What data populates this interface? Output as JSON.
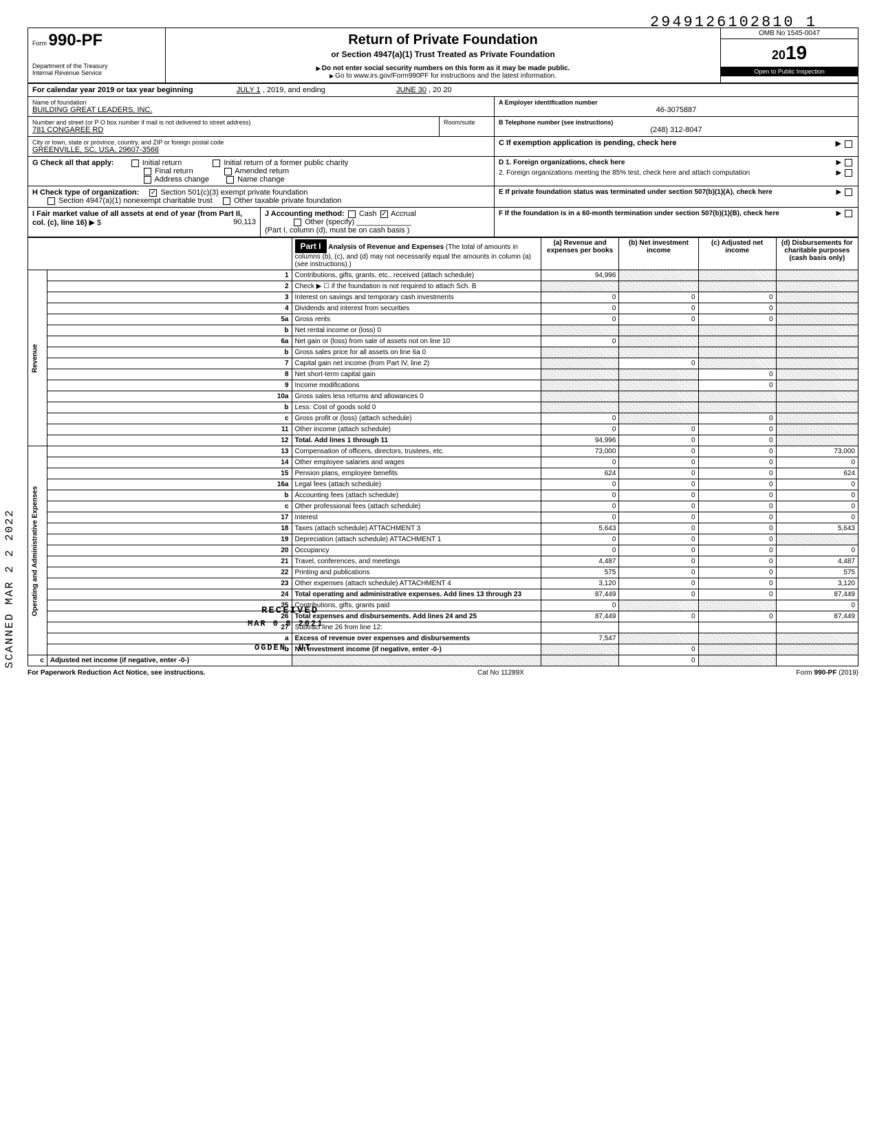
{
  "doc_id": "2949126102810  1",
  "form": {
    "prefix": "Form",
    "number": "990-PF",
    "dept1": "Department of the Treasury",
    "dept2": "Internal Revenue Service"
  },
  "title": {
    "main": "Return of Private Foundation",
    "sub": "or Section 4947(a)(1) Trust Treated as Private Foundation",
    "warn": "Do not enter social security numbers on this form as it may be made public.",
    "goto": "Go to www.irs.gov/Form990PF for instructions and the latest information."
  },
  "omb": {
    "no": "OMB No 1545-0047",
    "year_prefix": "20",
    "year_suffix": "19",
    "inspect": "Open to Public Inspection"
  },
  "period": {
    "label": "For calendar year 2019 or tax year beginning",
    "begin": "JULY 1",
    "mid": ", 2019, and ending",
    "end": "JUNE 30",
    "endyear": ", 20   20"
  },
  "id": {
    "name_label": "Name of foundation",
    "name": "BUILDING GREAT LEADERS, INC.",
    "addr_label": "Number and street (or P O  box number if mail is not delivered to street address)",
    "addr": "781 CONGAREE RD",
    "room_label": "Room/suite",
    "city_label": "City or town, state or province, country, and ZIP or foreign postal code",
    "city": "GREENVILLE, SC, USA, 29607-3566",
    "ein_label": "A  Employer identification number",
    "ein": "46-3075887",
    "phone_label": "B  Telephone number (see instructions)",
    "phone": "(248) 312-8047",
    "c_label": "C  If exemption application is pending, check here"
  },
  "g": {
    "label": "G   Check all that apply:",
    "opts": [
      "Initial return",
      "Initial return of a former public charity",
      "Final return",
      "Amended return",
      "Address change",
      "Name change"
    ]
  },
  "d": {
    "d1": "D  1. Foreign organizations, check here",
    "d2": "2. Foreign organizations meeting the 85% test, check here and attach computation"
  },
  "h": {
    "label": "H   Check type of organization:",
    "opt1": "Section 501(c)(3) exempt private foundation",
    "opt2": "Section 4947(a)(1) nonexempt charitable trust",
    "opt3": "Other taxable private foundation"
  },
  "e": {
    "label": "E  If private foundation status was terminated under section 507(b)(1)(A), check here"
  },
  "i": {
    "label": "I    Fair market value of all assets at end of year  (from Part II, col. (c), line 16)",
    "amount": "90,113",
    "j_label": "J   Accounting method:",
    "cash": "Cash",
    "accrual": "Accrual",
    "other": "Other (specify)",
    "note": "(Part I, column (d), must be on cash basis )"
  },
  "f": {
    "label": "F  If the foundation is in a 60-month termination under section 507(b)(1)(B), check here"
  },
  "part1": {
    "header": "Part I",
    "title": "Analysis of Revenue and Expenses",
    "note": "(The total of amounts in columns (b), (c), and (d) may not necessarily equal the amounts in column (a) (see instructions).)",
    "cols": {
      "a": "(a) Revenue and expenses per books",
      "b": "(b) Net investment income",
      "c": "(c) Adjusted net income",
      "d": "(d) Disbursements for charitable purposes (cash basis only)"
    }
  },
  "vert_revenue": "Revenue",
  "vert_expenses": "Operating and Administrative Expenses",
  "scanned": "SCANNED  MAR 2 2 2022",
  "received": "RECEIVED",
  "received2": "MAR 0 8 2021",
  "received3": "OGDEN, UT",
  "lines": [
    {
      "no": "1",
      "desc": "Contributions, gifts, grants, etc., received (attach schedule)",
      "a": "94,996",
      "b": "",
      "c": "",
      "d": "",
      "bs": true,
      "cs": true,
      "ds": true
    },
    {
      "no": "2",
      "desc": "Check ▶ ☐ if the foundation is not required to attach Sch. B",
      "a": "",
      "b": "",
      "c": "",
      "d": "",
      "as": true,
      "bs": true,
      "cs": true,
      "ds": true
    },
    {
      "no": "3",
      "desc": "Interest on savings and temporary cash investments",
      "a": "0",
      "b": "0",
      "c": "0",
      "d": "",
      "ds": true
    },
    {
      "no": "4",
      "desc": "Dividends and interest from securities",
      "a": "0",
      "b": "0",
      "c": "0",
      "d": "",
      "ds": true
    },
    {
      "no": "5a",
      "desc": "Gross rents",
      "a": "0",
      "b": "0",
      "c": "0",
      "d": "",
      "ds": true
    },
    {
      "no": "b",
      "desc": "Net rental income or (loss)                                          0",
      "a": "",
      "b": "",
      "c": "",
      "d": "",
      "as": true,
      "bs": true,
      "cs": true,
      "ds": true
    },
    {
      "no": "6a",
      "desc": "Net gain or (loss) from sale of assets not on line 10",
      "a": "0",
      "b": "",
      "c": "",
      "d": "",
      "bs": true,
      "cs": true,
      "ds": true
    },
    {
      "no": "b",
      "desc": "Gross sales price for all assets on line 6a                    0",
      "a": "",
      "b": "",
      "c": "",
      "d": "",
      "as": true,
      "bs": true,
      "cs": true,
      "ds": true
    },
    {
      "no": "7",
      "desc": "Capital gain net income (from Part IV, line 2)",
      "a": "",
      "b": "0",
      "c": "",
      "d": "",
      "as": true,
      "cs": true,
      "ds": true
    },
    {
      "no": "8",
      "desc": "Net short-term capital gain",
      "a": "",
      "b": "",
      "c": "0",
      "d": "",
      "as": true,
      "bs": true,
      "ds": true
    },
    {
      "no": "9",
      "desc": "Income modifications",
      "a": "",
      "b": "",
      "c": "0",
      "d": "",
      "as": true,
      "bs": true,
      "ds": true
    },
    {
      "no": "10a",
      "desc": "Gross sales less returns and allowances                   0",
      "a": "",
      "b": "",
      "c": "",
      "d": "",
      "as": true,
      "bs": true,
      "cs": true,
      "ds": true
    },
    {
      "no": "b",
      "desc": "Less: Cost of goods sold                                              0",
      "a": "",
      "b": "",
      "c": "",
      "d": "",
      "as": true,
      "bs": true,
      "cs": true,
      "ds": true
    },
    {
      "no": "c",
      "desc": "Gross profit or (loss) (attach schedule)",
      "a": "0",
      "b": "",
      "c": "0",
      "d": "",
      "bs": true,
      "ds": true
    },
    {
      "no": "11",
      "desc": "Other income (attach schedule)",
      "a": "0",
      "b": "0",
      "c": "0",
      "d": "",
      "ds": true
    },
    {
      "no": "12",
      "desc": "Total. Add lines 1 through 11",
      "a": "94,996",
      "b": "0",
      "c": "0",
      "d": "",
      "ds": true,
      "bold": true
    },
    {
      "no": "13",
      "desc": "Compensation of officers, directors, trustees, etc.",
      "a": "73,000",
      "b": "0",
      "c": "0",
      "d": "73,000"
    },
    {
      "no": "14",
      "desc": "Other employee salaries and wages",
      "a": "0",
      "b": "0",
      "c": "0",
      "d": "0"
    },
    {
      "no": "15",
      "desc": "Pension plans, employee benefits",
      "a": "624",
      "b": "0",
      "c": "0",
      "d": "624"
    },
    {
      "no": "16a",
      "desc": "Legal fees (attach schedule)",
      "a": "0",
      "b": "0",
      "c": "0",
      "d": "0"
    },
    {
      "no": "b",
      "desc": "Accounting fees (attach schedule)",
      "a": "0",
      "b": "0",
      "c": "0",
      "d": "0"
    },
    {
      "no": "c",
      "desc": "Other professional fees (attach schedule)",
      "a": "0",
      "b": "0",
      "c": "0",
      "d": "0"
    },
    {
      "no": "17",
      "desc": "Interest",
      "a": "0",
      "b": "0",
      "c": "0",
      "d": "0"
    },
    {
      "no": "18",
      "desc": "Taxes (attach schedule)                         ATTACHMENT 3",
      "a": "5,643",
      "b": "0",
      "c": "0",
      "d": "5,643"
    },
    {
      "no": "19",
      "desc": "Depreciation (attach schedule)              ATTACHMENT 1",
      "a": "0",
      "b": "0",
      "c": "0",
      "d": "",
      "ds": true
    },
    {
      "no": "20",
      "desc": "Occupancy",
      "a": "0",
      "b": "0",
      "c": "0",
      "d": "0"
    },
    {
      "no": "21",
      "desc": "Travel, conferences, and meetings",
      "a": "4,487",
      "b": "0",
      "c": "0",
      "d": "4,487"
    },
    {
      "no": "22",
      "desc": "Printing and publications",
      "a": "575",
      "b": "0",
      "c": "0",
      "d": "575"
    },
    {
      "no": "23",
      "desc": "Other expenses (attach schedule)       ATTACHMENT 4",
      "a": "3,120",
      "b": "0",
      "c": "0",
      "d": "3,120"
    },
    {
      "no": "24",
      "desc": "Total  operating  and  administrative  expenses. Add lines 13 through 23",
      "a": "87,449",
      "b": "0",
      "c": "0",
      "d": "87,449",
      "bold": true
    },
    {
      "no": "25",
      "desc": "Contributions, gifts, grants paid",
      "a": "0",
      "b": "",
      "c": "",
      "d": "0",
      "bs": true,
      "cs": true
    },
    {
      "no": "26",
      "desc": "Total expenses and disbursements. Add lines 24 and 25",
      "a": "87,449",
      "b": "0",
      "c": "0",
      "d": "87,449",
      "bold": true
    },
    {
      "no": "27",
      "desc": "Subtract line 26 from line 12:",
      "a": "",
      "b": "",
      "c": "",
      "d": ""
    },
    {
      "no": "a",
      "desc": "Excess of revenue over expenses and disbursements",
      "a": "7,547",
      "b": "",
      "c": "",
      "d": "",
      "bs": true,
      "cs": true,
      "ds": true,
      "bold": true
    },
    {
      "no": "b",
      "desc": "Net investment income (if negative, enter -0-)",
      "a": "",
      "b": "0",
      "c": "",
      "d": "",
      "as": true,
      "cs": true,
      "ds": true,
      "bold": true
    },
    {
      "no": "c",
      "desc": "Adjusted net income (if negative, enter -0-)",
      "a": "",
      "b": "",
      "c": "0",
      "d": "",
      "as": true,
      "bs": true,
      "ds": true,
      "bold": true
    }
  ],
  "footer": {
    "left": "For Paperwork Reduction Act Notice, see instructions.",
    "mid": "Cat  No  11289X",
    "right": "Form 990-PF (2019)"
  }
}
